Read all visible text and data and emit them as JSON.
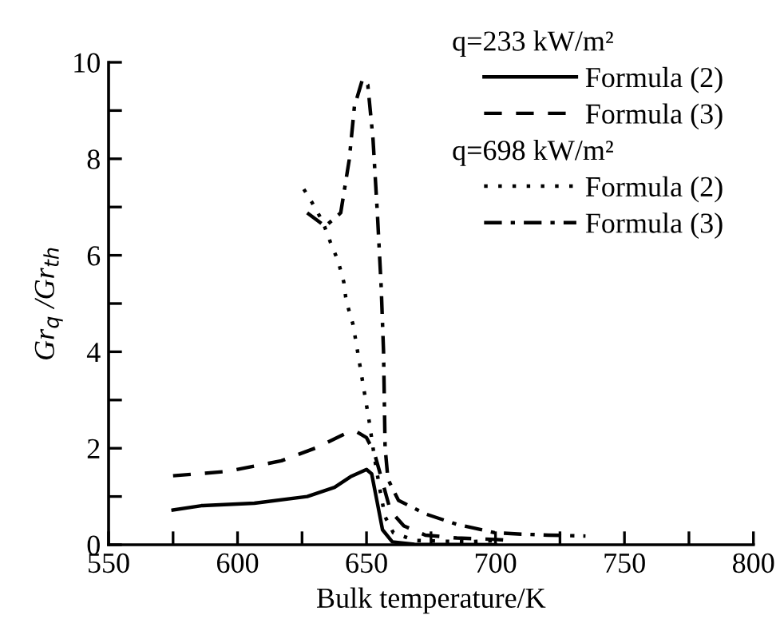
{
  "chart_data": {
    "type": "line",
    "xlabel": "Bulk temperature/K",
    "ylabel": "Gr$_{q}$ /Gr$_{th}$",
    "annotations": [
      "q=233 kW/m²",
      "q=698 kW/m²"
    ],
    "xlim": [
      550,
      800
    ],
    "xticks": [
      550,
      {
        "value": 575,
        "label": null
      },
      600,
      {
        "value": 625,
        "label": null
      },
      650,
      {
        "value": 675,
        "label": null
      },
      700,
      {
        "value": 725,
        "label": null
      },
      750,
      {
        "value": 775,
        "label": null
      },
      800
    ],
    "ylim": [
      0,
      10
    ],
    "yticks": [
      0,
      {
        "value": 1,
        "label": null
      },
      2,
      {
        "value": 3,
        "label": null
      },
      4,
      {
        "value": 5,
        "label": null
      },
      6,
      {
        "value": 7,
        "label": null
      },
      8,
      {
        "value": 9,
        "label": null
      },
      10
    ],
    "grid": false,
    "legend": "top right",
    "marker": "none",
    "series": [
      {
        "name": "Formula (2)",
        "color": "#000000",
        "line_style": "solid",
        "x": [
          575,
          586,
          606.5,
          627,
          637.6,
          643.8,
          650,
          652,
          654,
          656.2,
          660,
          668.6,
          700
        ],
        "values": [
          0.72,
          0.81,
          0.86,
          1.0,
          1.19,
          1.41,
          1.56,
          1.47,
          0.92,
          0.31,
          0.06,
          0.01,
          0
        ]
      },
      {
        "name": "Formula (3)",
        "color": "#000000",
        "line_style": "dashed",
        "x": [
          575,
          596,
          617,
          631,
          641.7,
          645.9,
          650,
          653,
          656.2,
          659.3,
          664.5,
          672.8,
          685,
          700,
          705
        ],
        "values": [
          1.43,
          1.52,
          1.74,
          2.02,
          2.3,
          2.35,
          2.22,
          1.91,
          1.3,
          0.7,
          0.39,
          0.2,
          0.14,
          0.11,
          0.09
        ]
      },
      {
        "name": "Formula (2)",
        "color": "#000000",
        "line_style": "dotted",
        "x": [
          625.7,
          628.8,
          633,
          636,
          639,
          641.2,
          642.1,
          644.8,
          647.9,
          651,
          653.1,
          655.2,
          657.2,
          660.4,
          668.6,
          689,
          701.8
        ],
        "values": [
          7.37,
          7.1,
          6.7,
          6.27,
          5.88,
          5.44,
          5.06,
          4.56,
          3.57,
          2.57,
          1.8,
          1.14,
          0.58,
          0.25,
          0.09,
          0.06,
          0.09
        ]
      },
      {
        "name": "Formula (3)",
        "color": "#000000",
        "line_style": "dashdot",
        "x": [
          627,
          634,
          640,
          643.3,
          645.3,
          648.4,
          650.5,
          652.5,
          654.2,
          655.7,
          656.6,
          657.2,
          658.3,
          662.4,
          672.8,
          685.2,
          699.7,
          710,
          720.4,
          734.9
        ],
        "values": [
          6.88,
          6.6,
          6.88,
          7.98,
          9.08,
          9.64,
          9.53,
          8.42,
          6.88,
          5.33,
          4.0,
          2.02,
          1.36,
          0.92,
          0.64,
          0.42,
          0.25,
          0.22,
          0.2,
          0.18
        ]
      }
    ]
  }
}
